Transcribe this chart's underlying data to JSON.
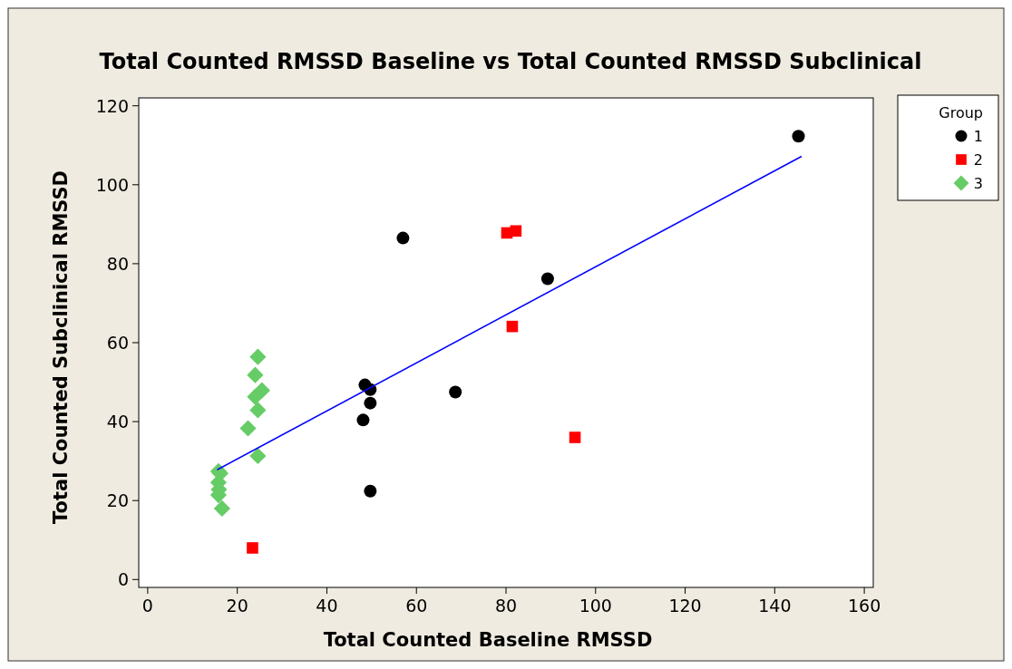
{
  "chart_data": {
    "type": "scatter",
    "title": "Total Counted RMSSD Baseline vs Total Counted RMSSD Subclinical",
    "xlabel": "Total Counted Baseline RMSSD",
    "ylabel": "Total Counted Subclinical RMSSD",
    "legend_title": "Group",
    "legend": "right",
    "grid": false,
    "xlim": [
      -2,
      162
    ],
    "ylim": [
      -2,
      122
    ],
    "xticks": [
      0,
      20,
      40,
      60,
      80,
      100,
      120,
      140,
      160
    ],
    "yticks": [
      0,
      20,
      40,
      60,
      80,
      100,
      120
    ],
    "series": [
      {
        "name": "1",
        "color": "#000000",
        "marker": "circle",
        "x": [
          145.3,
          57.0,
          89.3,
          48.5,
          49.7,
          49.7,
          48.1,
          68.7,
          49.7
        ],
        "values": [
          112.3,
          86.5,
          76.2,
          49.3,
          48.1,
          44.7,
          40.4,
          47.5,
          22.4
        ]
      },
      {
        "name": "2",
        "color": "#ff0000",
        "marker": "square",
        "x": [
          80.2,
          82.2,
          81.4,
          95.4,
          23.4
        ],
        "values": [
          87.8,
          88.3,
          64.1,
          36.0,
          8.0
        ]
      },
      {
        "name": "3",
        "color": "#66cc66",
        "marker": "diamond",
        "x": [
          24.6,
          24.0,
          25.5,
          24.0,
          24.6,
          22.4,
          24.6,
          15.8,
          16.2,
          15.8,
          15.9,
          15.8,
          16.6
        ],
        "values": [
          56.4,
          51.8,
          47.9,
          46.3,
          42.9,
          38.3,
          31.3,
          27.4,
          26.9,
          24.6,
          22.8,
          21.4,
          18.0
        ]
      },
      {
        "type": "line",
        "color": "#0000ff",
        "x": [
          15.5,
          146
        ],
        "values": [
          27.8,
          107.2
        ]
      }
    ]
  }
}
